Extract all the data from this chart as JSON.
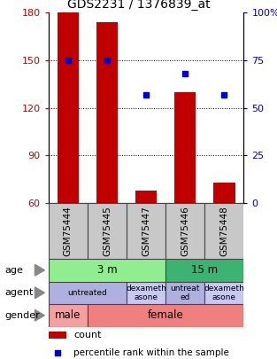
{
  "title": "GDS2231 / 1376839_at",
  "samples": [
    "GSM75444",
    "GSM75445",
    "GSM75447",
    "GSM75446",
    "GSM75448"
  ],
  "counts": [
    180,
    174,
    68,
    130,
    73
  ],
  "percentiles": [
    75,
    75,
    57,
    68,
    57
  ],
  "ylim_left": [
    60,
    180
  ],
  "ylim_right": [
    0,
    100
  ],
  "yticks_left": [
    60,
    90,
    120,
    150,
    180
  ],
  "yticks_right": [
    0,
    25,
    50,
    75,
    100
  ],
  "bar_color": "#c00000",
  "dot_color": "#0000cc",
  "bar_bottom": 60,
  "age_labels": [
    [
      "3 m",
      0,
      3
    ],
    [
      "15 m",
      3,
      5
    ]
  ],
  "age_colors": [
    "#90ee90",
    "#3cb371"
  ],
  "agent_data": [
    {
      "label": "untreated",
      "start": 0,
      "end": 2,
      "color": "#b0b0e0"
    },
    {
      "label": "dexameth\nasone",
      "start": 2,
      "end": 3,
      "color": "#c8c8f0"
    },
    {
      "label": "untreat\ned",
      "start": 3,
      "end": 4,
      "color": "#b0b0e0"
    },
    {
      "label": "dexameth\nasone",
      "start": 4,
      "end": 5,
      "color": "#c8c8f0"
    }
  ],
  "gender_data": [
    {
      "label": "male",
      "start": 0,
      "end": 1,
      "color": "#f4a0a0"
    },
    {
      "label": "female",
      "start": 1,
      "end": 5,
      "color": "#f08080"
    }
  ],
  "row_labels": [
    "age",
    "agent",
    "gender"
  ],
  "title_fontsize": 10,
  "sample_label_color": "#c8c8c8",
  "legend_bar_color": "#c00000",
  "legend_dot_color": "#0000cc"
}
